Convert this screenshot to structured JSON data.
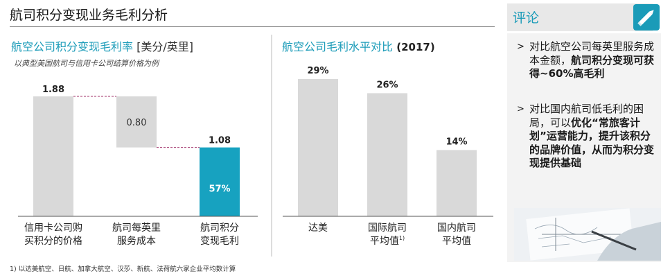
{
  "page_title": "航司积分变现业务毛利分析",
  "left_chart": {
    "title_main": "航空公司积分变现毛利率",
    "title_unit": " [美分/英里]",
    "subtitle": "以典型美国航司与信用卡公司结算价格为例"
  },
  "right_chart": {
    "title_main": "航空公司毛利水平对比",
    "title_year": " (2017)"
  },
  "footnote": "1) 以达美航空、日航、加拿大航空、汉莎、新航、法荷航六家企业平均数计算",
  "comment": {
    "heading": "评论",
    "bullet1": {
      "text_a": "对比航空公司每英里服务成本金额，",
      "text_b": "航司积分变现可获得~60%高毛利"
    },
    "bullet2": {
      "text_a": "对比国内航司低毛利的困局，可以",
      "text_b": "优化“常旅客计划”运营能力，提升该积分的品牌价值，从而为积分变现提供基础"
    }
  },
  "chart_data": [
    {
      "type": "bar",
      "title": "航空公司积分变现毛利率 [美分/英里]",
      "subtitle": "以典型美国航司与信用卡公司结算价格为例",
      "categories": [
        "信用卡公司购买积分的价格",
        "航司每英里服务成本",
        "航司积分变现毛利"
      ],
      "category_lines": [
        [
          "信用卡公司购",
          "买积分的价格"
        ],
        [
          "航司每英里",
          "服务成本"
        ],
        [
          "航司积分",
          "变现毛利"
        ]
      ],
      "series": [
        {
          "values": [
            1.88,
            0.8,
            1.08
          ],
          "labels": [
            "1.88",
            "0.80",
            "1.08"
          ],
          "waterfall_base": [
            0,
            1.08,
            0
          ],
          "colors": [
            "#d9d9d9",
            "#d9d9d9",
            "#17a2c0"
          ]
        }
      ],
      "annotation": "57%",
      "accent": "#17a2c0",
      "bar_color": "#d9d9d9"
    },
    {
      "type": "bar",
      "title": "航空公司毛利水平对比 (2017)",
      "categories": [
        "达美",
        "国际航司平均值",
        "国内航司平均值"
      ],
      "category_lines": [
        [
          "达美"
        ],
        [
          "国际航司",
          "平均值1)"
        ],
        [
          "国内航司",
          "平均值"
        ]
      ],
      "series": [
        {
          "values": [
            29,
            26,
            14
          ],
          "labels": [
            "29%",
            "26%",
            "14%"
          ],
          "colors": [
            "#d9d9d9",
            "#d9d9d9",
            "#d9d9d9"
          ]
        }
      ],
      "unit": "%"
    }
  ]
}
